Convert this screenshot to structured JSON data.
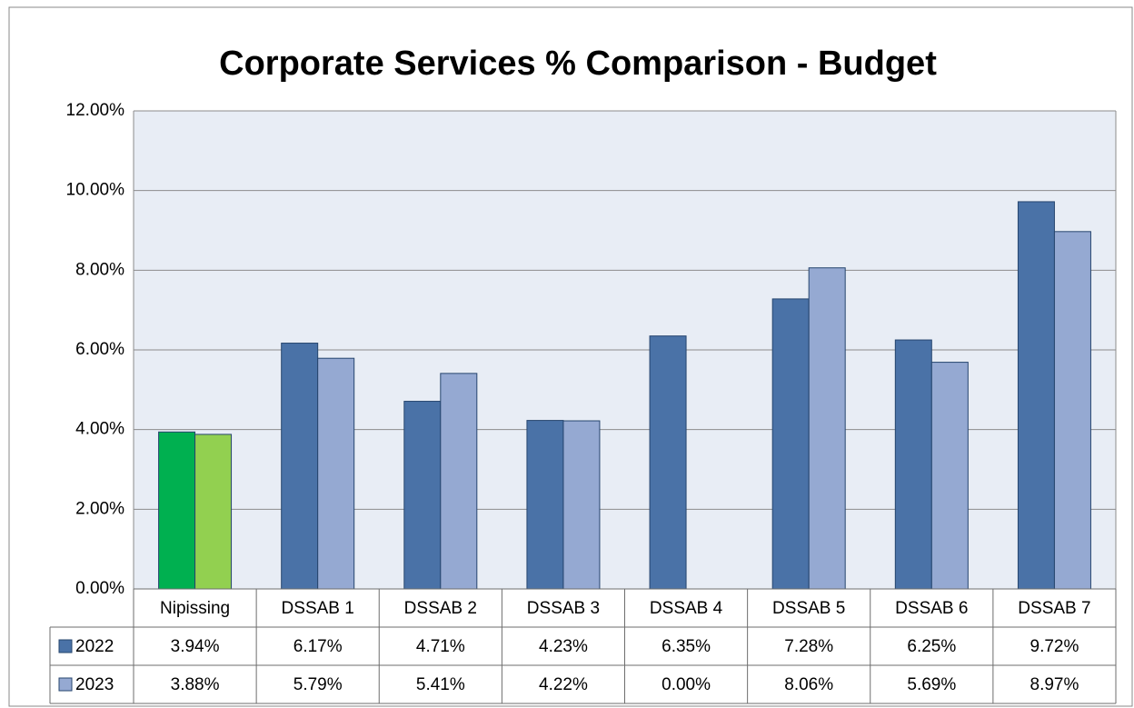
{
  "chart_data": {
    "type": "bar",
    "title": "Corporate Services % Comparison - Budget",
    "categories": [
      "Nipissing",
      "DSSAB 1",
      "DSSAB 2",
      "DSSAB 3",
      "DSSAB 4",
      "DSSAB 5",
      "DSSAB 6",
      "DSSAB 7"
    ],
    "series": [
      {
        "name": "2022",
        "color": "#4a72a7",
        "colors": [
          "#00b050",
          "#4a72a7",
          "#4a72a7",
          "#4a72a7",
          "#4a72a7",
          "#4a72a7",
          "#4a72a7",
          "#4a72a7"
        ],
        "values": [
          3.94,
          6.17,
          4.71,
          4.23,
          6.35,
          7.28,
          6.25,
          9.72
        ],
        "value_labels": [
          "3.94%",
          "6.17%",
          "4.71%",
          "4.23%",
          "6.35%",
          "7.28%",
          "6.25%",
          "9.72%"
        ]
      },
      {
        "name": "2023",
        "color": "#95a9d2",
        "colors": [
          "#92d050",
          "#95a9d2",
          "#95a9d2",
          "#95a9d2",
          "#95a9d2",
          "#95a9d2",
          "#95a9d2",
          "#95a9d2"
        ],
        "values": [
          3.88,
          5.79,
          5.41,
          4.22,
          0.0,
          8.06,
          5.69,
          8.97
        ],
        "value_labels": [
          "3.88%",
          "5.79%",
          "5.41%",
          "4.22%",
          "0.00%",
          "8.06%",
          "5.69%",
          "8.97%"
        ]
      }
    ],
    "ylim": [
      0,
      12
    ],
    "yticks": [
      {
        "value": 0,
        "label": "0.00%"
      },
      {
        "value": 2,
        "label": "2.00%"
      },
      {
        "value": 4,
        "label": "4.00%"
      },
      {
        "value": 6,
        "label": "6.00%"
      },
      {
        "value": 8,
        "label": "8.00%"
      },
      {
        "value": 10,
        "label": "10.00%"
      },
      {
        "value": 12,
        "label": "12.00%"
      }
    ],
    "grid": true
  }
}
